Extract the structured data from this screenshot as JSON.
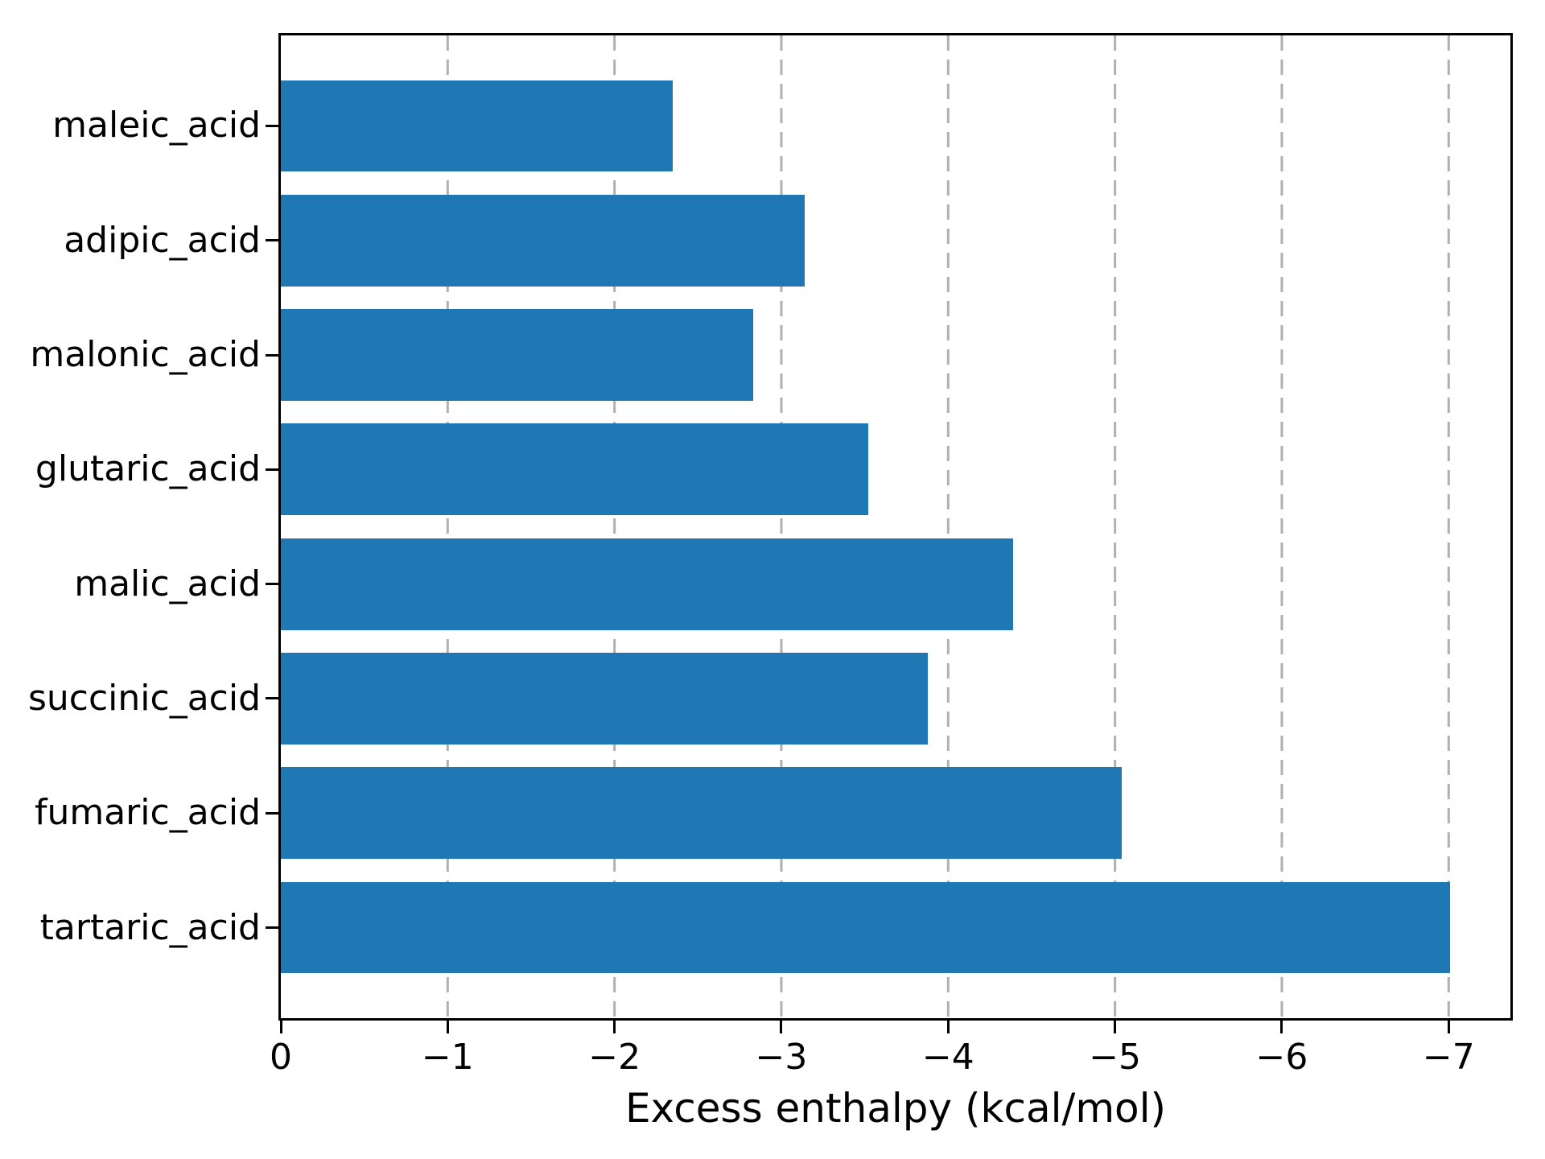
{
  "chart_data": {
    "type": "bar",
    "orientation": "horizontal",
    "title": "",
    "xlabel": "Excess enthalpy (kcal/mol)",
    "ylabel": "",
    "categories": [
      "maleic_acid",
      "adipic_acid",
      "malonic_acid",
      "glutaric_acid",
      "malic_acid",
      "succinic_acid",
      "fumaric_acid",
      "tartaric_acid"
    ],
    "values": [
      -2.35,
      -3.14,
      -2.83,
      -3.52,
      -4.39,
      -3.88,
      -5.04,
      -7.01
    ],
    "xlim": [
      0,
      -7.37
    ],
    "x_ticks": [
      0,
      -1,
      -2,
      -3,
      -4,
      -5,
      -6,
      -7
    ],
    "x_tick_labels": [
      "0",
      "−1",
      "−2",
      "−3",
      "−4",
      "−5",
      "−6",
      "−7"
    ],
    "grid": "x, dashed",
    "legend": "none",
    "colors": {
      "bar": "#1f77b4",
      "grid": "#b0b0b0",
      "axis": "#000000",
      "background": "#ffffff"
    }
  }
}
